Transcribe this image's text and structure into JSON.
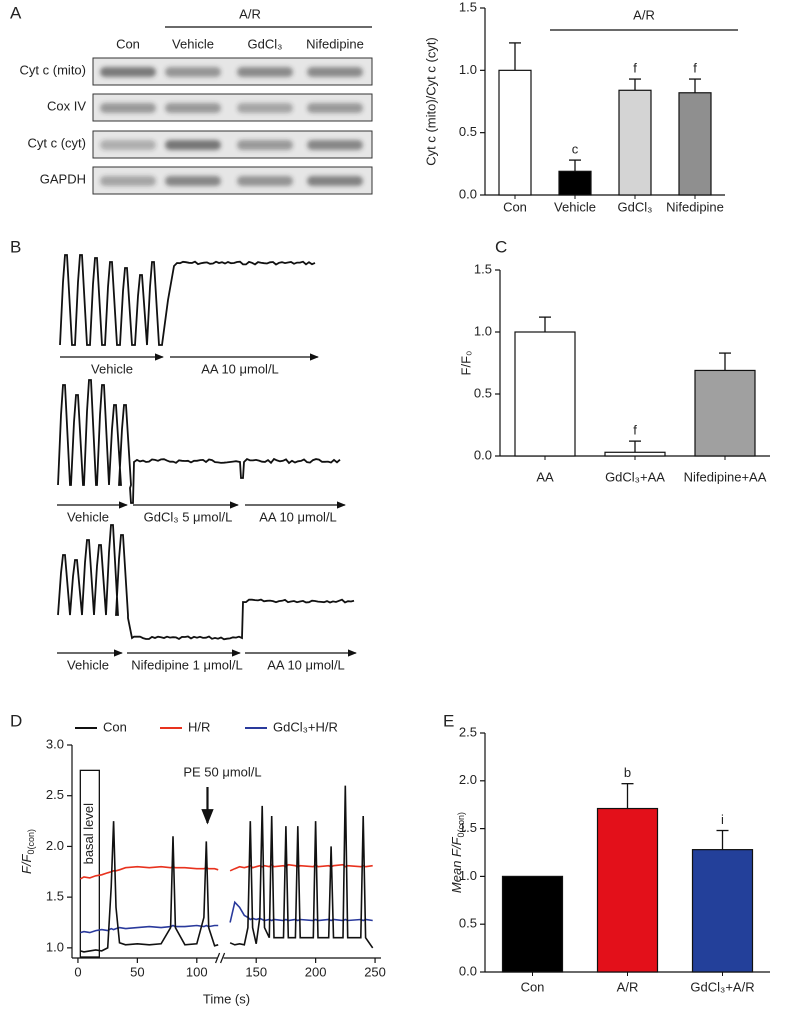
{
  "panel_labels": [
    "A",
    "B",
    "C",
    "D",
    "E"
  ],
  "blot": {
    "group_label": "A/R",
    "columns": [
      "Con",
      "Vehicle",
      "GdCl₃",
      "Nifedipine"
    ],
    "rows": [
      "Cyt c (mito)",
      "Cox IV",
      "Cyt c (cyt)",
      "GAPDH"
    ]
  },
  "traces": [
    {
      "labels": [
        "Vehicle",
        "AA 10 μmol/L"
      ]
    },
    {
      "labels": [
        "Vehicle",
        "GdCl₃ 5 μmol/L",
        "AA 10 μmol/L"
      ]
    },
    {
      "labels": [
        "Vehicle",
        "Nifedipine 1 μmol/L",
        "AA 10 μmol/L"
      ]
    }
  ],
  "chart_data": [
    {
      "type": "bar",
      "categories": [
        "Con",
        "Vehicle",
        "GdCl₃",
        "Nifedipine"
      ],
      "values": [
        1.0,
        0.19,
        0.84,
        0.82
      ],
      "errors": [
        0.22,
        0.09,
        0.09,
        0.11
      ],
      "colors": [
        "#ffffff",
        "#000000",
        "#d4d4d4",
        "#8f8f8f"
      ],
      "ylabel": "Cyt c (mito)/Cyt c (cyt)",
      "ylim": [
        0,
        1.5
      ],
      "yticks": [
        {
          "value": 0,
          "label": "0.0"
        },
        {
          "value": 0.5,
          "label": "0.5"
        },
        {
          "value": 1,
          "label": "1.0"
        },
        {
          "value": 1.5,
          "label": "1.5"
        }
      ],
      "significance": [
        null,
        "c",
        "f",
        "f"
      ],
      "bracket_label": "A/R"
    },
    {
      "type": "bar",
      "categories": [
        "AA",
        "GdCl₃+AA",
        "Nifedipine+AA"
      ],
      "values": [
        1.0,
        0.03,
        0.69
      ],
      "errors": [
        0.12,
        0.09,
        0.14
      ],
      "colors": [
        "#ffffff",
        "#ffffff",
        "#a0a0a0"
      ],
      "ylabel": "F/F₀",
      "ylim": [
        0,
        1.5
      ],
      "yticks": [
        {
          "value": 0,
          "label": "0.0"
        },
        {
          "value": 0.5,
          "label": "0.5"
        },
        {
          "value": 1,
          "label": "1.0"
        },
        {
          "value": 1.5,
          "label": "1.5"
        }
      ],
      "significance": [
        null,
        "f",
        null
      ]
    },
    {
      "type": "line",
      "x": [
        2,
        5,
        10,
        15,
        20,
        25,
        28,
        30,
        32,
        35,
        40,
        50,
        60,
        70,
        78,
        80,
        82,
        90,
        100,
        106,
        108,
        110,
        115,
        118,
        122,
        128,
        132,
        136,
        140,
        143,
        145,
        147,
        150,
        153,
        155,
        157,
        161,
        163,
        165,
        173,
        175,
        177,
        183,
        185,
        187,
        198,
        200,
        202,
        211,
        213,
        215,
        223,
        225,
        227,
        238,
        240,
        242,
        248
      ],
      "series": [
        {
          "name": "Con",
          "color": "#111111",
          "values": [
            0.97,
            0.96,
            0.97,
            0.98,
            0.97,
            1.0,
            1.6,
            2.25,
            1.4,
            1.05,
            1.03,
            1.04,
            1.03,
            1.04,
            1.2,
            2.1,
            1.2,
            1.03,
            1.04,
            1.3,
            2.05,
            1.2,
            1.02,
            1.03,
            null,
            1.05,
            1.03,
            1.04,
            1.03,
            1.2,
            2.25,
            1.2,
            1.04,
            1.3,
            2.4,
            1.2,
            1.1,
            2.3,
            1.1,
            1.1,
            2.2,
            1.1,
            1.1,
            2.2,
            1.1,
            1.1,
            2.25,
            1.1,
            1.1,
            2.0,
            1.1,
            1.1,
            2.6,
            1.1,
            1.1,
            2.3,
            1.1,
            1.0
          ]
        },
        {
          "name": "H/R",
          "color": "#e8321e",
          "values": [
            1.68,
            1.7,
            1.69,
            1.71,
            1.72,
            1.74,
            1.75,
            1.76,
            1.76,
            1.77,
            1.79,
            1.8,
            1.79,
            1.8,
            1.79,
            1.8,
            1.79,
            1.79,
            1.78,
            1.78,
            1.79,
            1.78,
            1.78,
            1.77,
            null,
            1.76,
            1.78,
            1.8,
            1.79,
            1.8,
            1.81,
            1.79,
            1.8,
            1.81,
            1.8,
            1.81,
            1.8,
            1.82,
            1.8,
            1.81,
            1.8,
            1.82,
            1.81,
            1.8,
            1.81,
            1.8,
            1.82,
            1.8,
            1.81,
            1.8,
            1.81,
            1.82,
            1.8,
            1.81,
            1.8,
            1.81,
            1.8,
            1.81
          ]
        },
        {
          "name": "GdCl₃+H/R",
          "color": "#2a3a9c",
          "values": [
            1.15,
            1.16,
            1.15,
            1.17,
            1.18,
            1.17,
            1.19,
            1.18,
            1.19,
            1.2,
            1.19,
            1.2,
            1.21,
            1.2,
            1.21,
            1.22,
            1.21,
            1.21,
            1.22,
            1.21,
            1.22,
            1.21,
            1.22,
            1.22,
            null,
            1.25,
            1.45,
            1.4,
            1.32,
            1.3,
            1.28,
            1.29,
            1.28,
            1.29,
            1.28,
            1.27,
            1.28,
            1.27,
            1.28,
            1.27,
            1.28,
            1.27,
            1.28,
            1.27,
            1.28,
            1.27,
            1.28,
            1.27,
            1.28,
            1.27,
            1.28,
            1.27,
            1.28,
            1.27,
            1.28,
            1.27,
            1.28,
            1.27
          ]
        }
      ],
      "xlim": [
        -5,
        255
      ],
      "xticks": [
        0,
        50,
        100,
        150,
        200,
        250
      ],
      "xlabel": "Time (s)",
      "ylim": [
        0.9,
        3.0
      ],
      "yticks": [
        {
          "value": 1,
          "label": "1.0"
        },
        {
          "value": 1.5,
          "label": "1.5"
        },
        {
          "value": 2,
          "label": "2.0"
        },
        {
          "value": 2.5,
          "label": "2.5"
        },
        {
          "value": 3,
          "label": "3.0"
        }
      ],
      "ylabel": {
        "main": "F/F",
        "sub": "0(con)"
      },
      "annotation": "PE 50 μmol/L",
      "box_label": "basal level",
      "legend": "top"
    },
    {
      "type": "bar",
      "categories": [
        "Con",
        "A/R",
        "GdCl₃+A/R"
      ],
      "values": [
        1.0,
        1.71,
        1.28
      ],
      "errors": [
        null,
        0.26,
        0.2
      ],
      "colors": [
        "#000000",
        "#e3101a",
        "#23409a"
      ],
      "ylabel": {
        "main": "Mean F/F",
        "sub": "0(con)"
      },
      "ylim": [
        0,
        2.5
      ],
      "yticks": [
        {
          "value": 0,
          "label": "0.0"
        },
        {
          "value": 0.5,
          "label": "0.5"
        },
        {
          "value": 1,
          "label": "1.0"
        },
        {
          "value": 1.5,
          "label": "1.5"
        },
        {
          "value": 2,
          "label": "2.0"
        },
        {
          "value": 2.5,
          "label": "2.5"
        }
      ],
      "significance": [
        null,
        "b",
        "i"
      ]
    }
  ]
}
